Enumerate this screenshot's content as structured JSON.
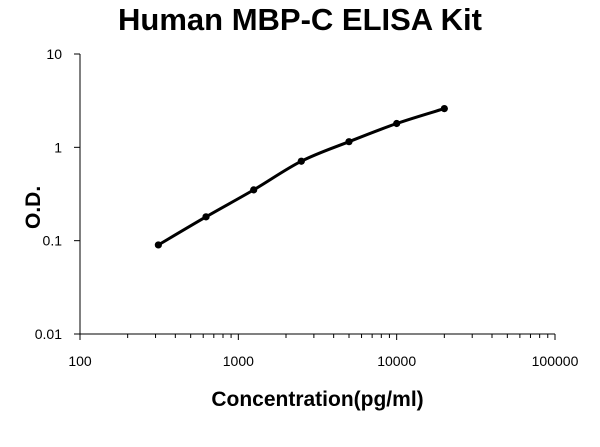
{
  "chart_data": {
    "type": "line",
    "title": "Human MBP-C ELISA Kit",
    "xlabel": "Concentration(pg/ml)",
    "ylabel": "O.D.",
    "x_scale": "log",
    "y_scale": "log",
    "xlim": [
      100,
      100000
    ],
    "ylim": [
      0.01,
      10
    ],
    "x_ticks": [
      "100",
      "1000",
      "10000",
      "100000"
    ],
    "y_ticks": [
      "10",
      "1",
      "0.1",
      "0.01"
    ],
    "grid": false,
    "legend": "none",
    "line_color": "#000000",
    "series": [
      {
        "x": [
          312.5,
          625,
          1250,
          2500,
          5000,
          10000,
          20000
        ],
        "y": [
          0.09,
          0.18,
          0.35,
          0.71,
          1.15,
          1.8,
          2.6
        ]
      }
    ]
  }
}
